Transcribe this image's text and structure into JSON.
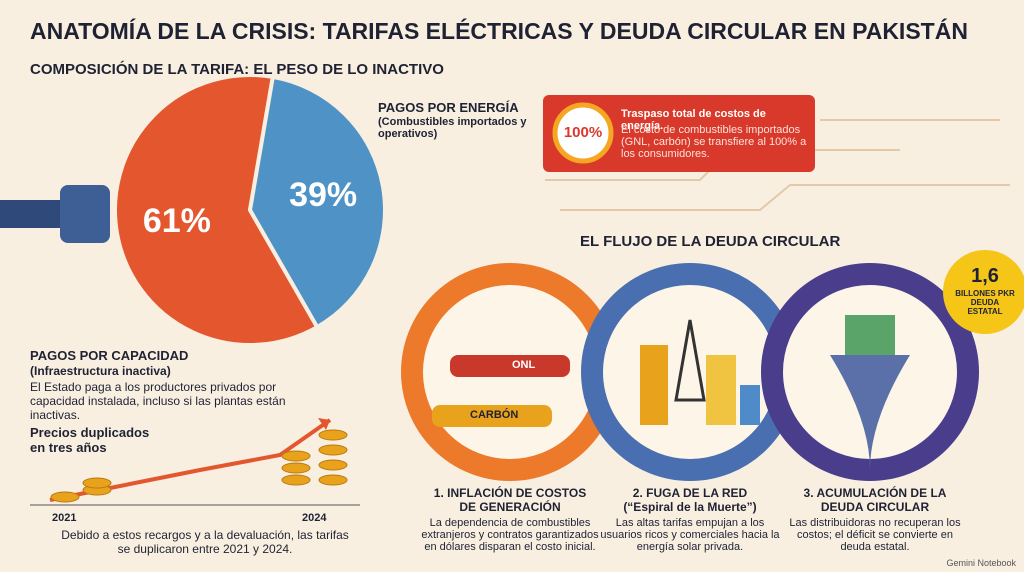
{
  "title": "ANATOMÍA DE LA CRISIS: TARIFAS ELÉCTRICAS Y DEUDA CIRCULAR EN PAKISTÁN",
  "tariff": {
    "heading": "COMPOSICIÓN DE LA TARIFA: EL PESO DE LO INACTIVO",
    "slices": [
      {
        "value": 61,
        "label": "61%",
        "color": "#e4572e"
      },
      {
        "value": 39,
        "label": "39%",
        "color": "#4f93c6"
      }
    ],
    "energy": {
      "title": "PAGOS POR ENERGÍA",
      "subtitle": "(Combustibles importados y operativos)"
    },
    "capacity": {
      "title": "PAGOS POR CAPACIDAD",
      "subtitle": "(Infraestructura inactiva)",
      "text": "El Estado paga a los productores privados por capacidad instalada, incluso si las plantas están inactivas."
    }
  },
  "callout": {
    "badge": "100%",
    "title": "Traspaso total de costos de energía.",
    "text": "El costo de combustibles importados (GNL, carbón) se transfiere al 100% a los consumidores."
  },
  "prices": {
    "title": "Precios duplicados en tres años",
    "start": "2021",
    "end": "2024",
    "text": "Debido a estos recargos y a la devaluación, las tarifas se duplicaron entre 2021 y 2024."
  },
  "flow": {
    "heading": "EL FLUJO DE LA DEUDA CIRCULAR",
    "ship_labels": [
      "ONL",
      "CARBÓN"
    ],
    "badge": {
      "amount": "1,6",
      "text": "BILLONES PKR DEUDA ESTATAL"
    },
    "steps": [
      {
        "title": "1. INFLACIÓN DE COSTOS DE GENERACIÓN",
        "text": "La dependencia de combustibles extranjeros y contratos garantizados en dólares disparan el costo inicial."
      },
      {
        "title": "2. FUGA DE LA RED (“Espiral de la Muerte”)",
        "text": "Las altas tarifas empujan a los usuarios ricos y comerciales hacia la energía solar privada."
      },
      {
        "title": "3. ACUMULACIÓN DE LA DEUDA CIRCULAR",
        "text": "Las distribuidoras no recuperan los costos; el déficit se convierte en deuda estatal."
      }
    ]
  },
  "footer": "Gemini Notebook"
}
